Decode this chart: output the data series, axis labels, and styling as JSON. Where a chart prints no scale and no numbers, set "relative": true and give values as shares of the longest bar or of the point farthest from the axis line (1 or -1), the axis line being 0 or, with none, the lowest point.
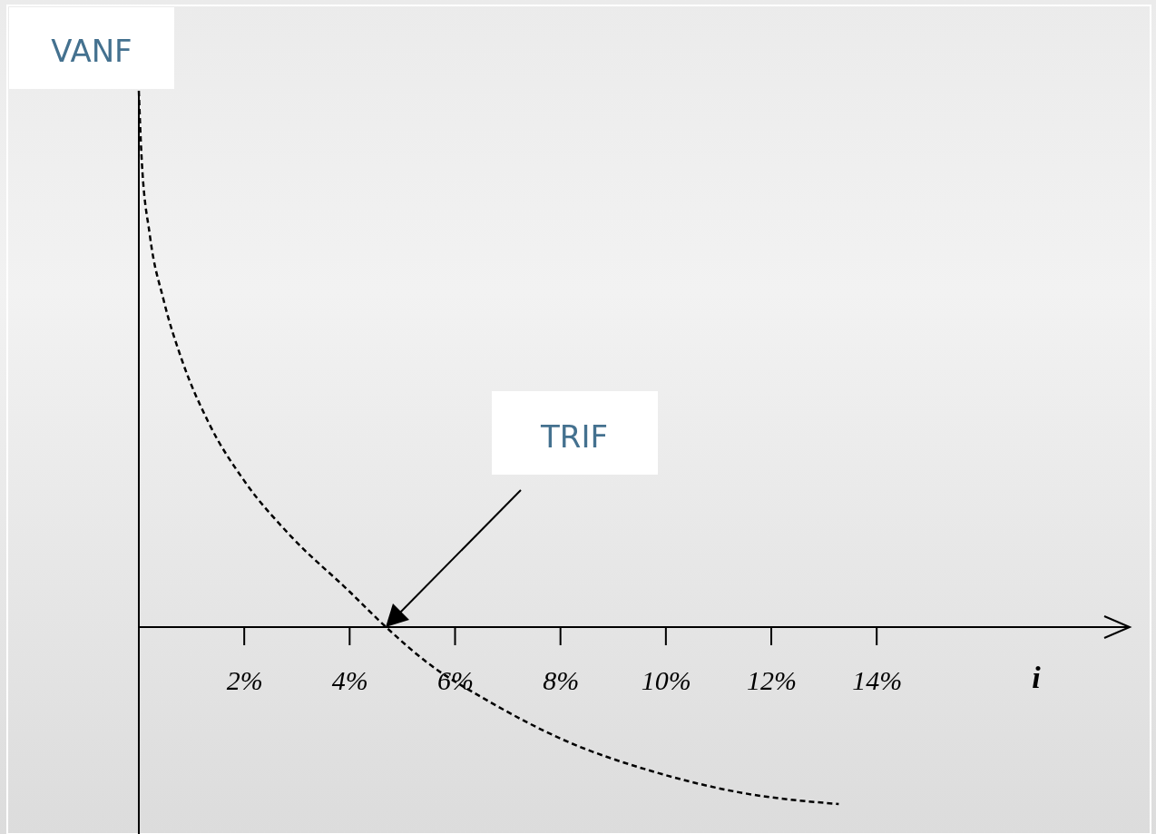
{
  "chart_data": {
    "type": "line",
    "ylabel": "VANF",
    "xlabel": "i",
    "relative": true,
    "line_style": "dashed",
    "xlim": [
      0,
      18.8
    ],
    "xticks": [
      {
        "value": 2,
        "label": "2%"
      },
      {
        "value": 4,
        "label": "4%"
      },
      {
        "value": 6,
        "label": "6%"
      },
      {
        "value": 8,
        "label": "8%"
      },
      {
        "value": 10,
        "label": "10%"
      },
      {
        "value": 12,
        "label": "12%"
      },
      {
        "value": 14,
        "label": "14%"
      }
    ],
    "series": [
      {
        "color": "#000000",
        "x": [
          0,
          0.05,
          0.21,
          0.47,
          0.81,
          1.33,
          2.02,
          2.88,
          4.0,
          4.69,
          5.47,
          6.67,
          8.05,
          9.78,
          11.5,
          13.28
        ],
        "values": [
          1,
          0.88,
          0.73,
          0.61,
          0.5,
          0.38,
          0.27,
          0.17,
          0.066,
          0,
          -0.066,
          -0.14,
          -0.21,
          -0.27,
          -0.31,
          -0.33
        ]
      }
    ],
    "annotations": [
      "TRIF"
    ]
  }
}
